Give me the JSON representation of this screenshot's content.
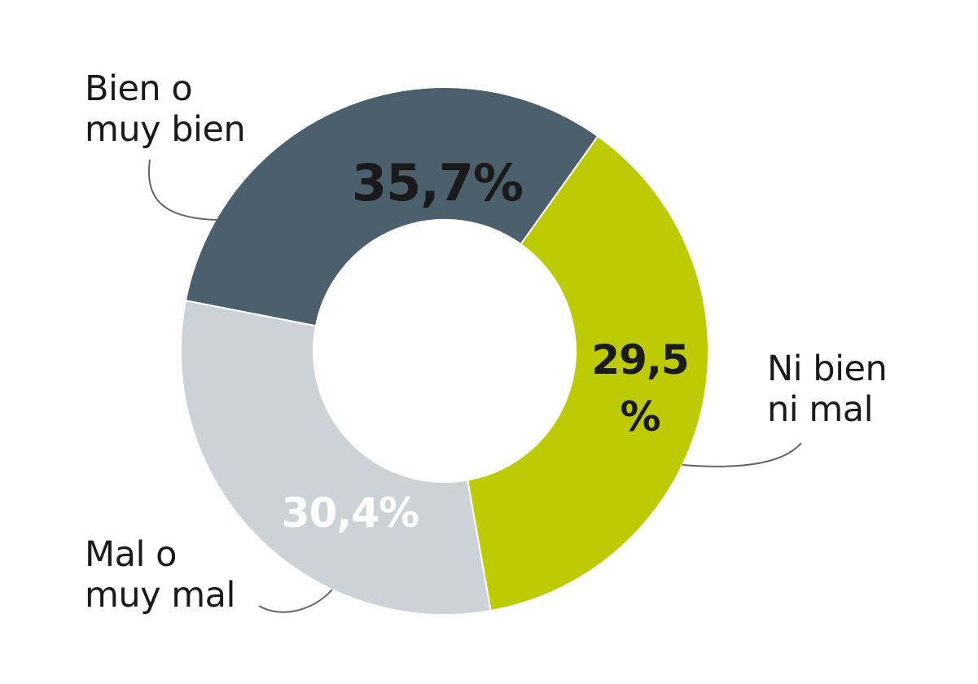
{
  "chart_data": {
    "type": "pie",
    "variant": "donut",
    "title": "",
    "categories": [
      "Bien o muy bien",
      "Ni bien ni mal",
      "Mal o muy mal"
    ],
    "values": [
      35.7,
      29.5,
      30.4
    ],
    "value_labels": [
      "35,7%",
      "29,5\n%",
      "30,4%"
    ],
    "colors": [
      "#bdcb04",
      "#cbd3d8",
      "#4b606c"
    ],
    "legend": "none (direct labels with leader lines)",
    "start_angle_note": "segments clockwise starting at ~35° clockwise from 12 o'clock"
  },
  "labels": {
    "bien": "Bien o\nmuy bien",
    "ni": "Ni bien\nni mal",
    "mal": "Mal o\nmuy mal"
  },
  "value_text": {
    "bien": "35,7%",
    "ni_line1": "29,5",
    "ni_line2": "%",
    "mal": "30,4%"
  },
  "colors": {
    "text_dark": "#1a1a1a",
    "text_light": "#ffffff",
    "leader": "#666666"
  }
}
